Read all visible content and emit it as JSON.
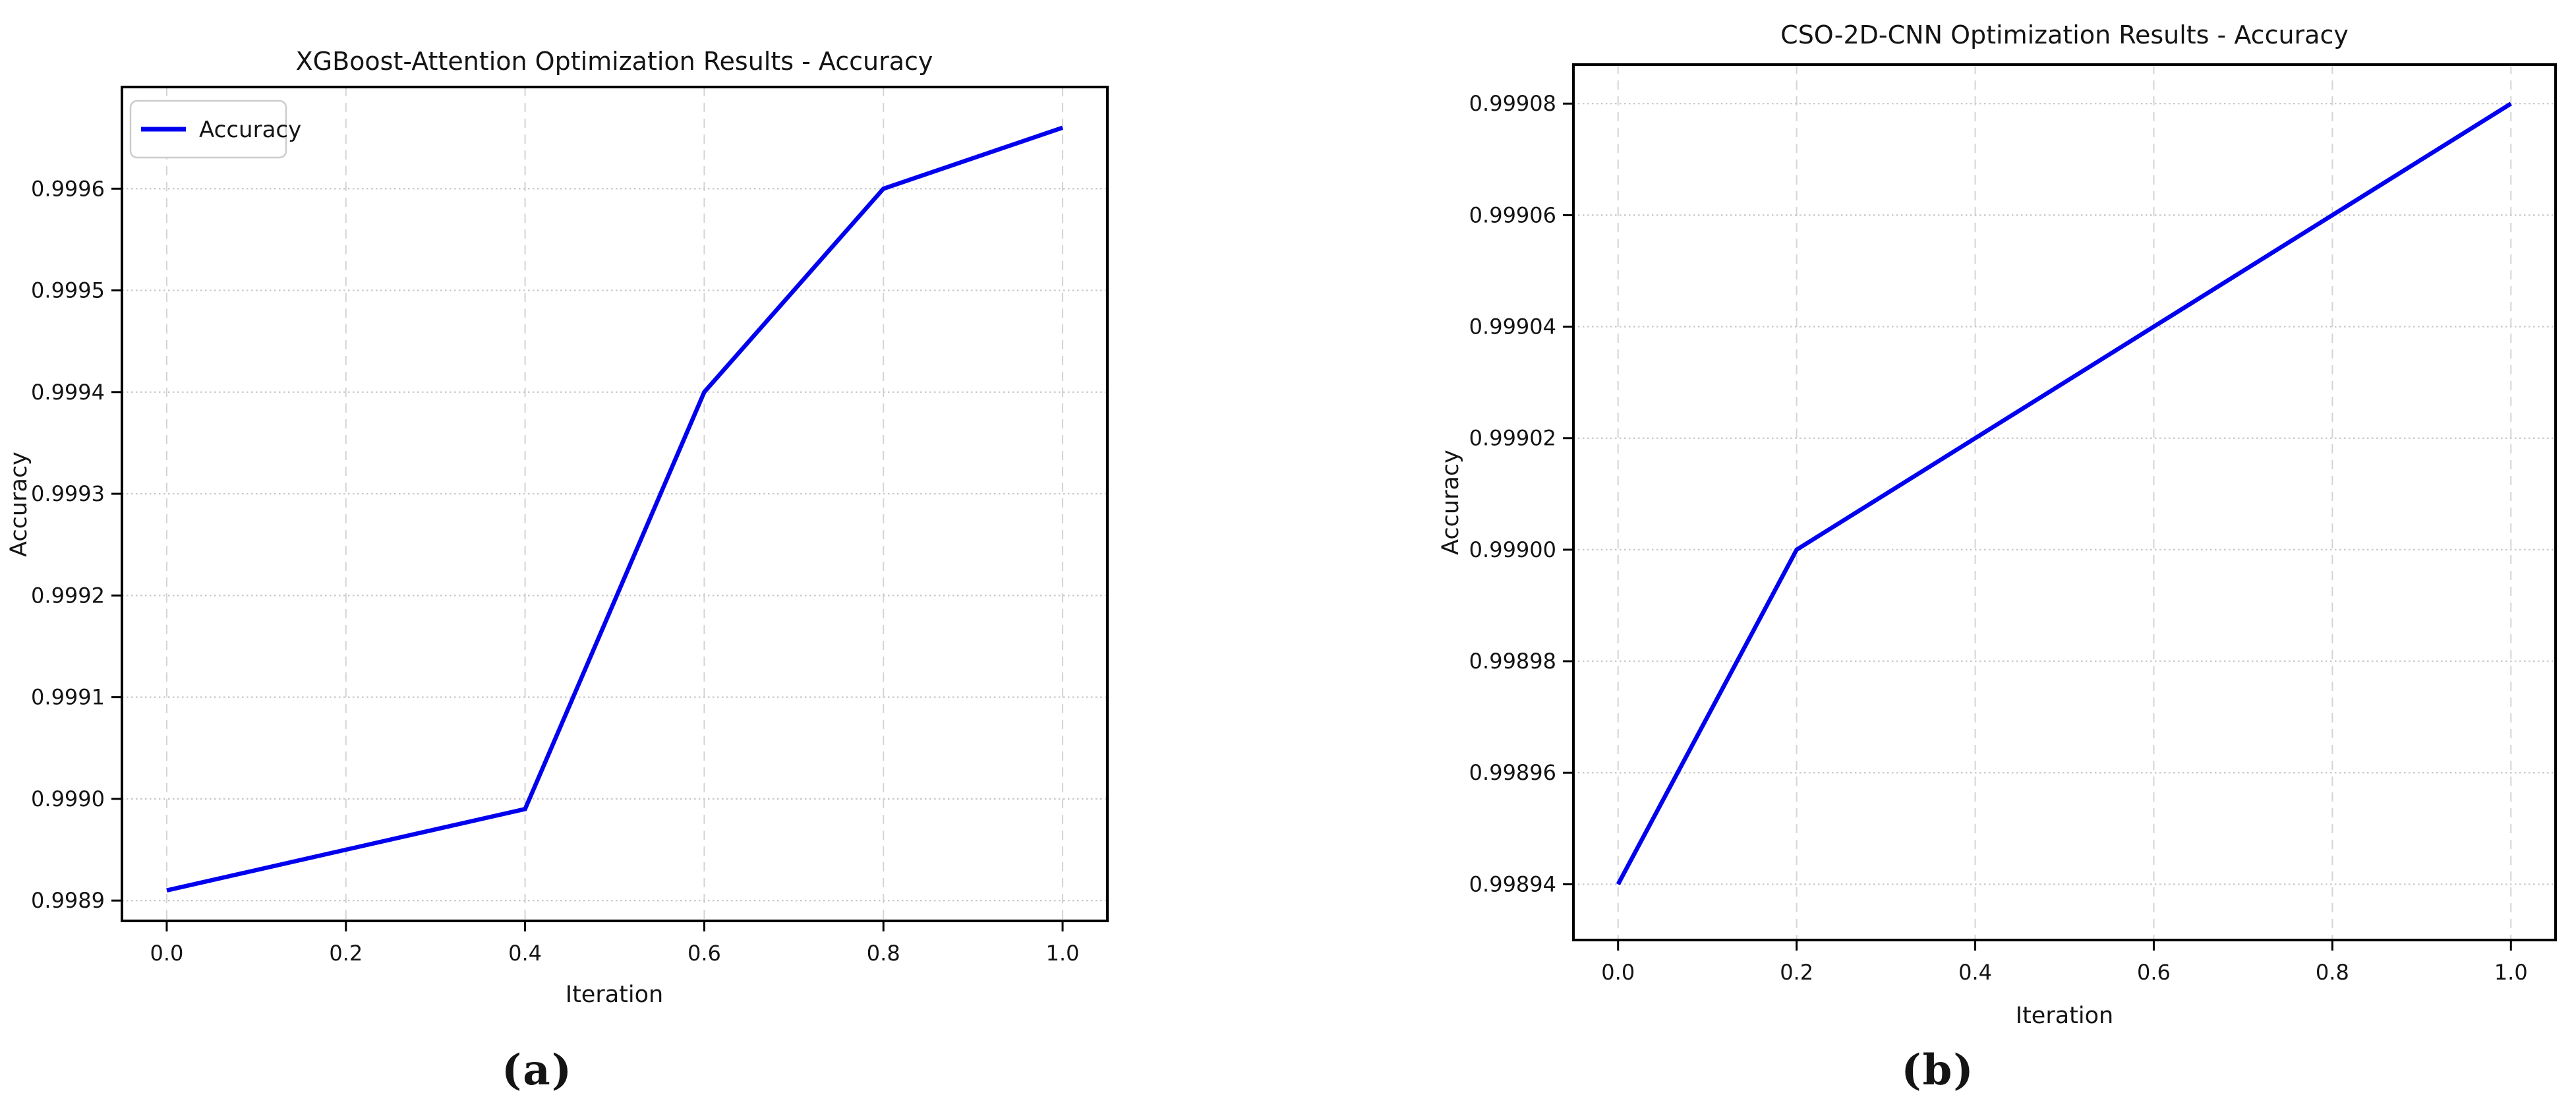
{
  "page": {
    "background": "#ffffff",
    "text_color": "#141414"
  },
  "colors": {
    "line": "#0000ee",
    "grid_horizontal": "#c6c6c6",
    "grid_vertical": "#d4d4d4",
    "spine": "#000000",
    "legend_border": "#cccccc",
    "legend_background": "#ffffff"
  },
  "captions": [
    {
      "text": "(a)"
    },
    {
      "text": "(b)"
    }
  ],
  "chart_data": [
    {
      "type": "line",
      "title": "XGBoost-Attention Optimization Results - Accuracy",
      "xlabel": "Iteration",
      "ylabel": "Accuracy",
      "legend_entries": [
        {
          "label": "Accuracy",
          "color": "#0000ee"
        }
      ],
      "legend_position": "upper left",
      "grid": true,
      "x": [
        0.0,
        0.2,
        0.4,
        0.6,
        0.8,
        1.0
      ],
      "y": [
        0.99891,
        0.99895,
        0.99899,
        0.9994,
        0.9996,
        0.99966
      ],
      "xlim": [
        -0.05,
        1.05
      ],
      "ylim": [
        0.99888,
        0.9997
      ],
      "xticks": [
        0.0,
        0.2,
        0.4,
        0.6,
        0.8,
        1.0
      ],
      "xtick_labels": [
        "0.0",
        "0.2",
        "0.4",
        "0.6",
        "0.8",
        "1.0"
      ],
      "yticks": [
        0.9989,
        0.999,
        0.9991,
        0.9992,
        0.9993,
        0.9994,
        0.9995,
        0.9996
      ],
      "ytick_labels": [
        "0.9989",
        "0.9990",
        "0.9991",
        "0.9992",
        "0.9993",
        "0.9994",
        "0.9995",
        "0.9996"
      ]
    },
    {
      "type": "line",
      "title": "CSO-2D-CNN Optimization Results - Accuracy",
      "xlabel": "Iteration",
      "ylabel": "Accuracy",
      "legend_entries": [],
      "legend_position": "none",
      "grid": true,
      "x": [
        0.0,
        0.2,
        0.4,
        0.6,
        0.8,
        1.0
      ],
      "y": [
        0.99894,
        0.999,
        0.99902,
        0.99904,
        0.99906,
        0.99908
      ],
      "xlim": [
        -0.05,
        1.05
      ],
      "ylim": [
        0.99893,
        0.999087
      ],
      "xticks": [
        0.0,
        0.2,
        0.4,
        0.6,
        0.8,
        1.0
      ],
      "xtick_labels": [
        "0.0",
        "0.2",
        "0.4",
        "0.6",
        "0.8",
        "1.0"
      ],
      "yticks": [
        0.99894,
        0.99896,
        0.99898,
        0.999,
        0.99902,
        0.99904,
        0.99906,
        0.99908
      ],
      "ytick_labels": [
        "0.99894",
        "0.99896",
        "0.99898",
        "0.99900",
        "0.99902",
        "0.99904",
        "0.99906",
        "0.99908"
      ]
    }
  ]
}
